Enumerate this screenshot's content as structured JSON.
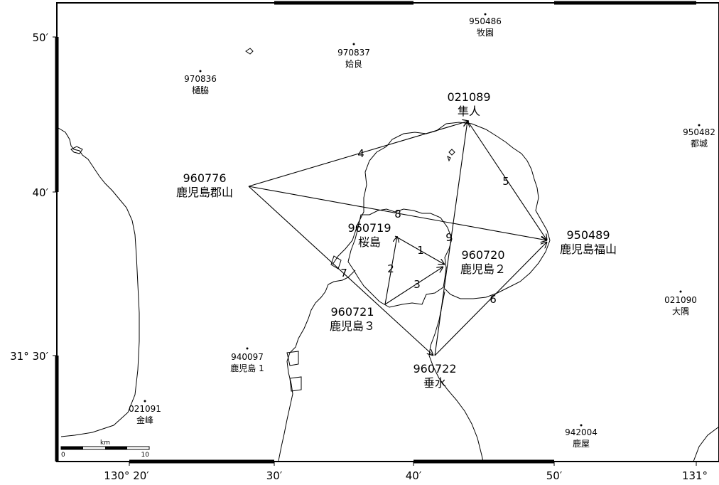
{
  "axes": {
    "lat_labels": [
      {
        "text": "50′"
      },
      {
        "text": "40′"
      },
      {
        "text": "31° 30′"
      }
    ],
    "lon_labels": [
      {
        "text": "130° 20′"
      },
      {
        "text": "30′"
      },
      {
        "text": "40′"
      },
      {
        "text": "50′"
      },
      {
        "text": "131°"
      }
    ]
  },
  "scale_bar": {
    "unit": "km",
    "min": "0",
    "max": "10"
  },
  "stations": [
    {
      "code": "950486",
      "name": "牧園",
      "size": "small"
    },
    {
      "code": "970837",
      "name": "姶良",
      "size": "small"
    },
    {
      "code": "970836",
      "name": "樋脇",
      "size": "small"
    },
    {
      "code": "950482",
      "name": "都城",
      "size": "small"
    },
    {
      "code": "021090",
      "name": "大隅",
      "size": "small"
    },
    {
      "code": "940097",
      "name": "鹿児島 1",
      "size": "small"
    },
    {
      "code": "021091",
      "name": "金峰",
      "size": "small"
    },
    {
      "code": "942004",
      "name": "鹿屋",
      "size": "small"
    },
    {
      "code": "021089",
      "name": "隼人",
      "size": "large"
    },
    {
      "code": "960776",
      "name": "鹿児島郡山",
      "size": "large"
    },
    {
      "code": "960719",
      "name": "桜島",
      "size": "large"
    },
    {
      "code": "960720",
      "name": "鹿児島２",
      "size": "large"
    },
    {
      "code": "950489",
      "name": "鹿児島福山",
      "size": "large"
    },
    {
      "code": "960721",
      "name": "鹿児島３",
      "size": "large"
    },
    {
      "code": "960722",
      "name": "垂水",
      "size": "large"
    }
  ],
  "baselines": [
    {
      "label": "1",
      "from": "960719",
      "to": "960720"
    },
    {
      "label": "2",
      "from": "960721",
      "to": "960719"
    },
    {
      "label": "3",
      "from": "960721",
      "to": "960720"
    },
    {
      "label": "4",
      "from": "960776",
      "to": "021089"
    },
    {
      "label": "5",
      "from": "021089",
      "to": "950489"
    },
    {
      "label": "6",
      "from": "960722",
      "to": "950489"
    },
    {
      "label": "7",
      "from": "960776",
      "to": "960722"
    },
    {
      "label": "8",
      "from": "960776",
      "to": "950489"
    },
    {
      "label": "9",
      "from": "960722",
      "to": "021089"
    }
  ]
}
